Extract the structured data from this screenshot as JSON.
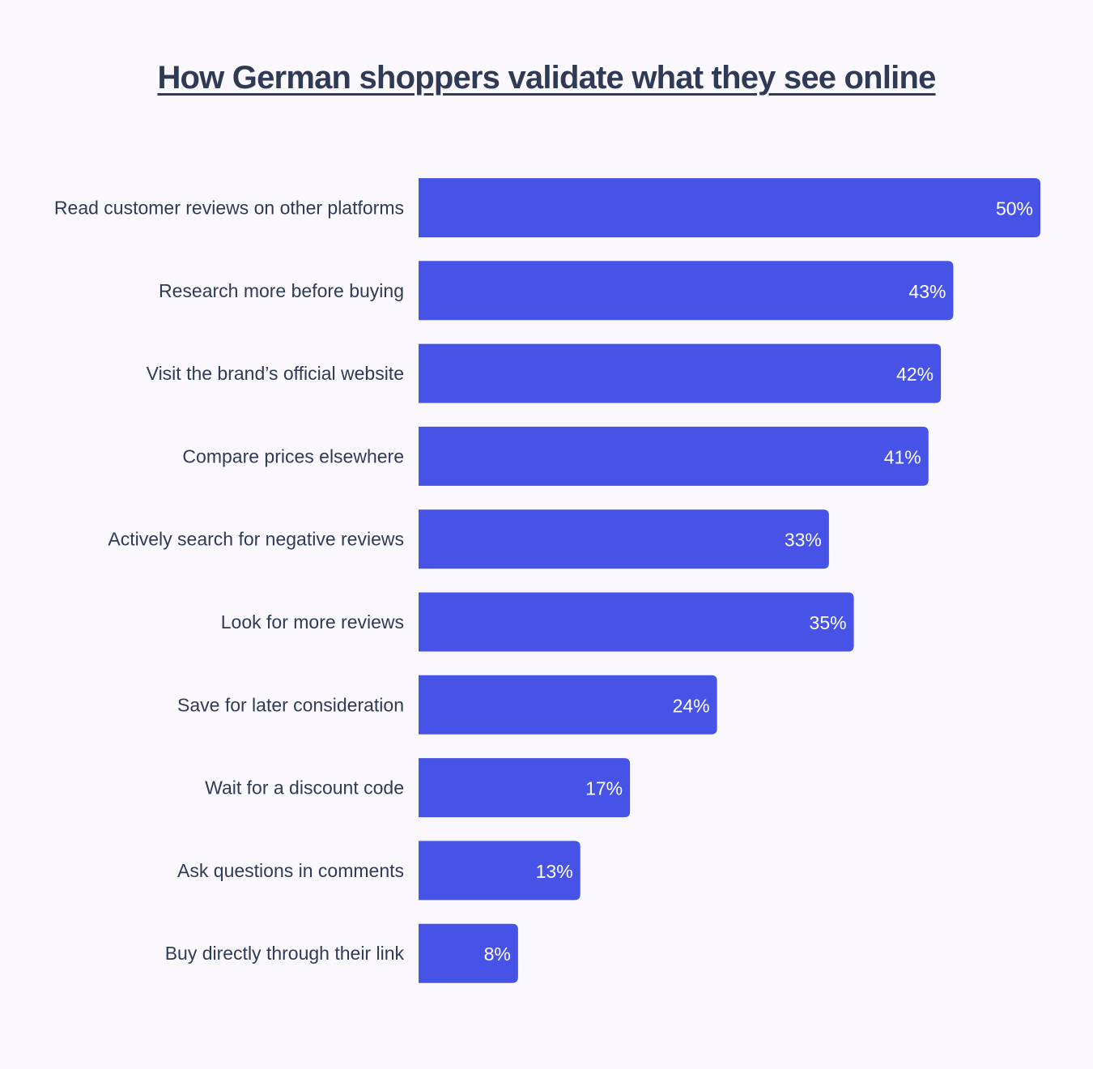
{
  "title": "How German shoppers validate what they see online",
  "colors": {
    "bar": "#4752e6",
    "text": "#2f3a55",
    "value_text": "#ffffff",
    "background": "#fbf8fd"
  },
  "chart_data": {
    "type": "bar",
    "orientation": "horizontal",
    "title": "How German shoppers validate what they see online",
    "categories": [
      "Read customer reviews on other platforms",
      "Research more before buying",
      "Visit the brand’s official website",
      "Compare prices elsewhere",
      "Actively search for negative reviews",
      "Look for more reviews",
      "Save for later consideration",
      "Wait for a discount code",
      "Ask questions in comments",
      "Buy directly through their link"
    ],
    "values": [
      50,
      43,
      42,
      41,
      33,
      35,
      24,
      17,
      13,
      8
    ],
    "value_labels": [
      "50%",
      "43%",
      "42%",
      "41%",
      "33%",
      "35%",
      "24%",
      "17%",
      "13%",
      "8%"
    ],
    "unit": "%",
    "xlim": [
      0,
      50
    ],
    "grid": false,
    "legend": "none"
  }
}
